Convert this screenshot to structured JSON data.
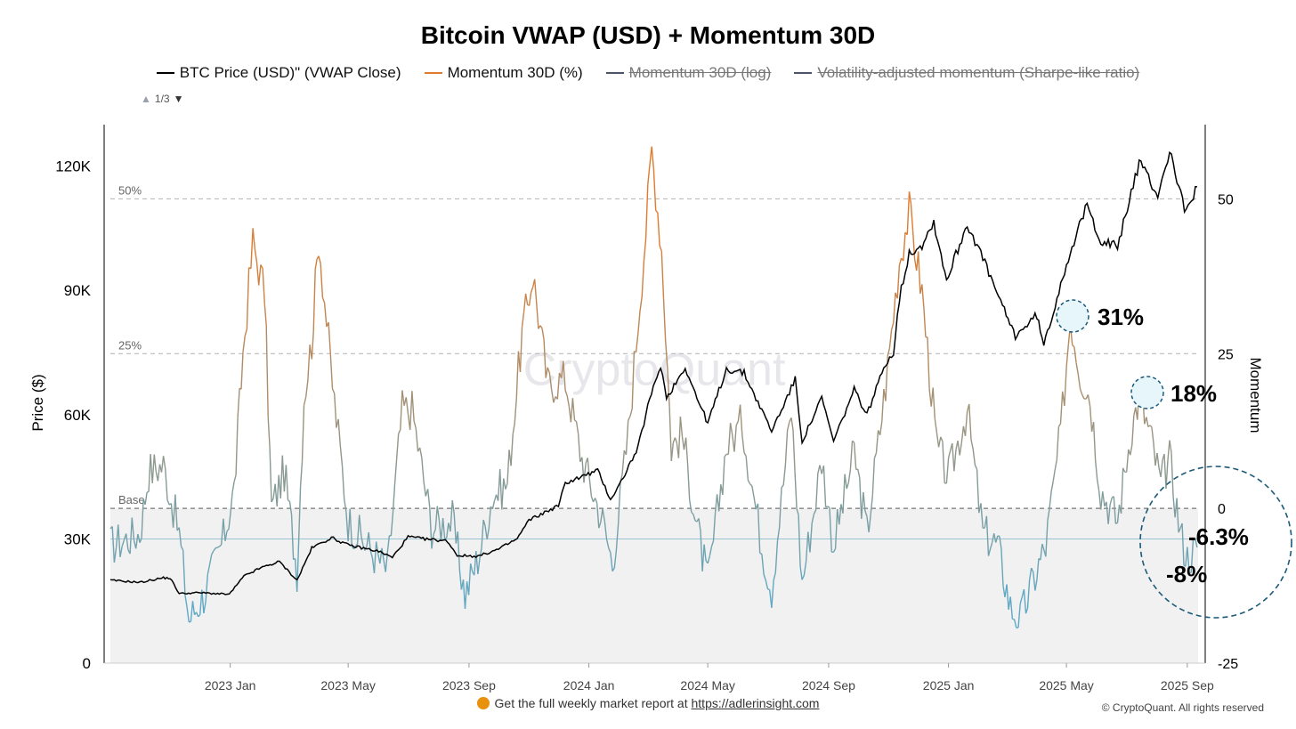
{
  "chart_data": {
    "type": "line",
    "title": "Bitcoin VWAP (USD) + Momentum 30D",
    "legend": [
      {
        "name": "BTC Price (USD)\" (VWAP Close)",
        "color": "#000000",
        "active": true
      },
      {
        "name": "Momentum 30D (%)",
        "color": "#e07b2e",
        "active": true
      },
      {
        "name": "Momentum 30D (log)",
        "color": "#4a5568",
        "active": false
      },
      {
        "name": "Volatility-adjusted momentum (Sharpe-like ratio)",
        "color": "#4a5568",
        "active": false
      }
    ],
    "legend_placement": "top",
    "pager": "1/3",
    "ylabel_left": "Price ($)",
    "ylabel_right": "Momentum",
    "ylim_left": [
      0,
      130000
    ],
    "ylim_right": [
      -25,
      62
    ],
    "yticks_left": [
      {
        "v": 0,
        "label": "0"
      },
      {
        "v": 30000,
        "label": "30K"
      },
      {
        "v": 60000,
        "label": "60K"
      },
      {
        "v": 90000,
        "label": "90K"
      },
      {
        "v": 120000,
        "label": "120K"
      }
    ],
    "yticks_right": [
      {
        "v": -25,
        "label": "-25"
      },
      {
        "v": 0,
        "label": "0"
      },
      {
        "v": 25,
        "label": "25"
      },
      {
        "v": 50,
        "label": "50"
      }
    ],
    "xlim": [
      "2022-09-01",
      "2025-09-12"
    ],
    "xticks": [
      {
        "date": "2023-01-01",
        "label": "2023 Jan"
      },
      {
        "date": "2023-05-01",
        "label": "2023 May"
      },
      {
        "date": "2023-09-01",
        "label": "2023 Sep"
      },
      {
        "date": "2024-01-01",
        "label": "2024 Jan"
      },
      {
        "date": "2024-05-01",
        "label": "2024 May"
      },
      {
        "date": "2024-09-01",
        "label": "2024 Sep"
      },
      {
        "date": "2025-01-01",
        "label": "2025 Jan"
      },
      {
        "date": "2025-05-01",
        "label": "2025 May"
      },
      {
        "date": "2025-09-01",
        "label": "2025 Sep"
      }
    ],
    "reference_lines": [
      {
        "momentum": 50,
        "label": "50%"
      },
      {
        "momentum": 25,
        "label": "25%"
      },
      {
        "momentum": 0,
        "label": "Base"
      }
    ],
    "price_series": {
      "name": "BTC Price (USD)\" (VWAP Close)",
      "color": "#000000",
      "points": [
        [
          "2022-09-01",
          20000
        ],
        [
          "2022-10-01",
          19500
        ],
        [
          "2022-10-25",
          20600
        ],
        [
          "2022-11-01",
          20500
        ],
        [
          "2022-11-10",
          16800
        ],
        [
          "2022-12-01",
          17000
        ],
        [
          "2022-12-31",
          16600
        ],
        [
          "2023-01-15",
          21000
        ],
        [
          "2023-02-01",
          23000
        ],
        [
          "2023-02-20",
          24500
        ],
        [
          "2023-03-10",
          20000
        ],
        [
          "2023-03-25",
          27800
        ],
        [
          "2023-04-14",
          30300
        ],
        [
          "2023-05-01",
          28500
        ],
        [
          "2023-06-01",
          27000
        ],
        [
          "2023-06-15",
          25500
        ],
        [
          "2023-07-01",
          30500
        ],
        [
          "2023-07-20",
          29900
        ],
        [
          "2023-08-10",
          29500
        ],
        [
          "2023-08-20",
          26000
        ],
        [
          "2023-09-10",
          25800
        ],
        [
          "2023-10-01",
          27500
        ],
        [
          "2023-10-20",
          30000
        ],
        [
          "2023-11-01",
          34500
        ],
        [
          "2023-12-01",
          38000
        ],
        [
          "2023-12-08",
          43500
        ],
        [
          "2024-01-10",
          46500
        ],
        [
          "2024-01-23",
          39500
        ],
        [
          "2024-02-01",
          43000
        ],
        [
          "2024-02-20",
          52000
        ],
        [
          "2024-03-01",
          62000
        ],
        [
          "2024-03-14",
          72000
        ],
        [
          "2024-03-20",
          64000
        ],
        [
          "2024-04-08",
          71500
        ],
        [
          "2024-04-20",
          64000
        ],
        [
          "2024-05-01",
          58000
        ],
        [
          "2024-05-20",
          71000
        ],
        [
          "2024-06-07",
          70000
        ],
        [
          "2024-07-05",
          56000
        ],
        [
          "2024-07-29",
          68500
        ],
        [
          "2024-08-05",
          53500
        ],
        [
          "2024-08-25",
          64000
        ],
        [
          "2024-09-06",
          53500
        ],
        [
          "2024-09-27",
          66000
        ],
        [
          "2024-10-10",
          60000
        ],
        [
          "2024-10-29",
          72500
        ],
        [
          "2024-11-06",
          75000
        ],
        [
          "2024-11-12",
          88000
        ],
        [
          "2024-11-22",
          99000
        ],
        [
          "2024-12-05",
          101000
        ],
        [
          "2024-12-17",
          106500
        ],
        [
          "2024-12-30",
          92500
        ],
        [
          "2025-01-20",
          106000
        ],
        [
          "2025-02-01",
          100000
        ],
        [
          "2025-02-25",
          86000
        ],
        [
          "2025-03-10",
          79000
        ],
        [
          "2025-04-01",
          84000
        ],
        [
          "2025-04-08",
          76500
        ],
        [
          "2025-05-01",
          96500
        ],
        [
          "2025-05-22",
          110500
        ],
        [
          "2025-06-05",
          102000
        ],
        [
          "2025-06-22",
          100500
        ],
        [
          "2025-07-14",
          121000
        ],
        [
          "2025-08-02",
          113000
        ],
        [
          "2025-08-14",
          123500
        ],
        [
          "2025-08-31",
          108500
        ],
        [
          "2025-09-11",
          115000
        ]
      ]
    },
    "momentum_series": {
      "name": "Momentum 30D (%)",
      "color_high": "#e07b2e",
      "color_low": "#5ea9c5",
      "points": [
        [
          "2022-09-01",
          -6
        ],
        [
          "2022-10-01",
          -4
        ],
        [
          "2022-10-10",
          6
        ],
        [
          "2022-10-25",
          7
        ],
        [
          "2022-11-10",
          -4
        ],
        [
          "2022-11-20",
          -18
        ],
        [
          "2022-12-05",
          -14
        ],
        [
          "2022-12-25",
          -5
        ],
        [
          "2023-01-05",
          3
        ],
        [
          "2023-01-14",
          25
        ],
        [
          "2023-01-24",
          43
        ],
        [
          "2023-02-05",
          35
        ],
        [
          "2023-02-12",
          0
        ],
        [
          "2023-02-25",
          6
        ],
        [
          "2023-03-10",
          -10
        ],
        [
          "2023-03-17",
          18
        ],
        [
          "2023-03-25",
          27
        ],
        [
          "2023-04-01",
          44
        ],
        [
          "2023-04-15",
          20
        ],
        [
          "2023-05-01",
          -2
        ],
        [
          "2023-05-20",
          -6
        ],
        [
          "2023-06-10",
          -10
        ],
        [
          "2023-06-25",
          16
        ],
        [
          "2023-07-05",
          16
        ],
        [
          "2023-07-25",
          -3
        ],
        [
          "2023-08-15",
          -2
        ],
        [
          "2023-08-28",
          -14
        ],
        [
          "2023-09-10",
          -8
        ],
        [
          "2023-09-25",
          2
        ],
        [
          "2023-10-10",
          4
        ],
        [
          "2023-10-25",
          28
        ],
        [
          "2023-11-05",
          38
        ],
        [
          "2023-11-20",
          20
        ],
        [
          "2023-12-08",
          21
        ],
        [
          "2023-12-25",
          8
        ],
        [
          "2024-01-15",
          -2
        ],
        [
          "2024-01-25",
          -9
        ],
        [
          "2024-02-10",
          12
        ],
        [
          "2024-02-28",
          45
        ],
        [
          "2024-03-05",
          58
        ],
        [
          "2024-03-15",
          42
        ],
        [
          "2024-03-25",
          10
        ],
        [
          "2024-04-05",
          12
        ],
        [
          "2024-04-20",
          -3
        ],
        [
          "2024-05-01",
          -12
        ],
        [
          "2024-05-20",
          10
        ],
        [
          "2024-06-05",
          14
        ],
        [
          "2024-06-25",
          -6
        ],
        [
          "2024-07-05",
          -13
        ],
        [
          "2024-07-25",
          16
        ],
        [
          "2024-08-05",
          -12
        ],
        [
          "2024-08-25",
          8
        ],
        [
          "2024-09-06",
          -6
        ],
        [
          "2024-09-27",
          9
        ],
        [
          "2024-10-10",
          -4
        ],
        [
          "2024-10-29",
          20
        ],
        [
          "2024-11-12",
          40
        ],
        [
          "2024-11-22",
          48
        ],
        [
          "2024-12-05",
          35
        ],
        [
          "2024-12-20",
          10
        ],
        [
          "2025-01-01",
          5
        ],
        [
          "2025-01-20",
          16
        ],
        [
          "2025-02-05",
          -4
        ],
        [
          "2025-02-20",
          -6
        ],
        [
          "2025-03-05",
          -16
        ],
        [
          "2025-03-15",
          -18
        ],
        [
          "2025-04-01",
          -10
        ],
        [
          "2025-04-10",
          -6
        ],
        [
          "2025-04-25",
          12
        ],
        [
          "2025-05-05",
          31
        ],
        [
          "2025-05-15",
          22
        ],
        [
          "2025-05-25",
          18
        ],
        [
          "2025-06-05",
          3
        ],
        [
          "2025-06-22",
          -2
        ],
        [
          "2025-07-05",
          12
        ],
        [
          "2025-07-14",
          18
        ],
        [
          "2025-07-25",
          12
        ],
        [
          "2025-08-05",
          4
        ],
        [
          "2025-08-14",
          8
        ],
        [
          "2025-08-25",
          -4
        ],
        [
          "2025-09-01",
          -8
        ],
        [
          "2025-09-11",
          -6.3
        ]
      ]
    },
    "annotations": [
      {
        "text": "31%",
        "date": "2025-05-05",
        "momentum": 31
      },
      {
        "text": "18%",
        "date": "2025-07-14",
        "momentum": 18
      },
      {
        "text": "-6.3%",
        "date": "2025-09-11",
        "momentum": -6.3
      },
      {
        "text": "-8%",
        "date": "2025-09-01",
        "momentum": -8
      }
    ],
    "watermark": "CryptoQuant"
  },
  "footer": {
    "text": "Get the full weekly market report at",
    "link": "https://adlerinsight.com",
    "copyright": "© CryptoQuant. All rights reserved"
  }
}
